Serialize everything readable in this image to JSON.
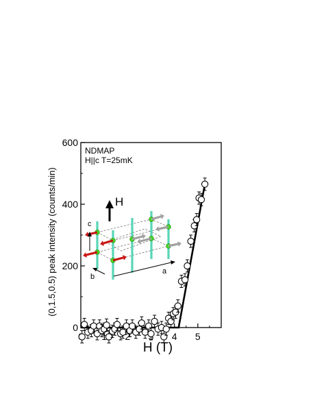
{
  "chart_data": {
    "type": "scatter",
    "title": "",
    "xlabel": "H (T)",
    "ylabel": "(0,1.5,0.5) peak intensity (counts/min)",
    "xlim": [
      0,
      6
    ],
    "ylim": [
      0,
      600
    ],
    "x_ticks": [
      0,
      1,
      2,
      3,
      4,
      5
    ],
    "x_tick_labels": [
      "0",
      "1",
      "2",
      "3",
      "4",
      "5"
    ],
    "y_ticks": [
      0,
      200,
      400,
      600
    ],
    "y_tick_labels": [
      "0",
      "200",
      "400",
      "600"
    ],
    "annotation_lines": [
      "NDMAP",
      "H||c T=25mK"
    ],
    "series": [
      {
        "marker": "open-circle",
        "points": [
          [
            0.05,
            -30
          ],
          [
            0.15,
            10
          ],
          [
            0.3,
            -15
          ],
          [
            0.45,
            -10
          ],
          [
            0.55,
            5
          ],
          [
            0.7,
            -20
          ],
          [
            0.8,
            5
          ],
          [
            0.9,
            -10
          ],
          [
            1.0,
            -5
          ],
          [
            1.1,
            8
          ],
          [
            1.2,
            -30
          ],
          [
            1.35,
            -12
          ],
          [
            1.45,
            -5
          ],
          [
            1.55,
            10
          ],
          [
            1.7,
            -20
          ],
          [
            1.8,
            -15
          ],
          [
            1.95,
            5
          ],
          [
            2.1,
            -10
          ],
          [
            2.2,
            5
          ],
          [
            2.35,
            -15
          ],
          [
            2.5,
            -5
          ],
          [
            2.6,
            15
          ],
          [
            2.75,
            -15
          ],
          [
            2.9,
            5
          ],
          [
            3.0,
            -20
          ],
          [
            3.15,
            20
          ],
          [
            3.3,
            -5
          ],
          [
            3.45,
            0
          ],
          [
            3.55,
            -30
          ],
          [
            3.65,
            -5
          ],
          [
            3.75,
            30
          ],
          [
            3.85,
            20
          ],
          [
            3.95,
            45
          ],
          [
            4.05,
            50
          ],
          [
            4.15,
            70
          ],
          [
            4.3,
            150
          ],
          [
            4.45,
            155
          ],
          [
            4.55,
            200
          ],
          [
            4.7,
            280
          ],
          [
            4.85,
            330
          ],
          [
            4.95,
            350
          ],
          [
            5.05,
            420
          ],
          [
            5.15,
            415
          ],
          [
            5.3,
            465
          ]
        ]
      }
    ],
    "fit_line": [
      [
        0,
        0
      ],
      [
        4.18,
        0
      ],
      [
        5.3,
        465
      ]
    ]
  },
  "inset": {
    "field_label": "H",
    "axis_c": "c",
    "axis_b": "b",
    "axis_a": "a",
    "pillar_color": "#58d6b6",
    "atom_color": "#44dd22",
    "spin_up_color": "#c81414",
    "spin_down_color": "#a0a0a0"
  }
}
